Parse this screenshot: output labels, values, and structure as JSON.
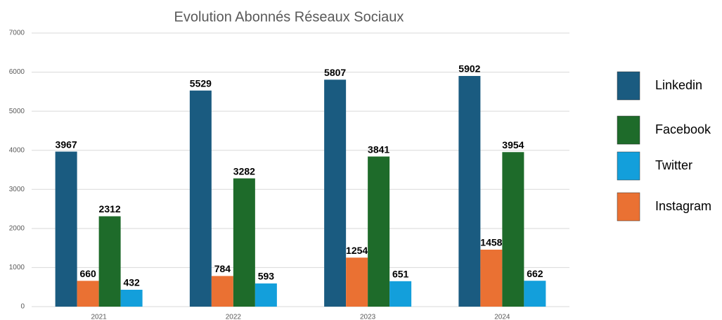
{
  "chart_data": {
    "type": "bar",
    "title": "Evolution Abonnés Réseaux Sociaux",
    "categories": [
      "2021",
      "2022",
      "2023",
      "2024"
    ],
    "series": [
      {
        "name": "Linkedin",
        "color": "#1a5b80",
        "values": [
          3967,
          5529,
          5807,
          5902
        ]
      },
      {
        "name": "Facebook",
        "color": "#1e6b2a",
        "values": [
          2312,
          3282,
          3841,
          3954
        ]
      },
      {
        "name": "Twitter",
        "color": "#139fdb",
        "values": [
          432,
          593,
          651,
          662
        ]
      },
      {
        "name": "Instagram",
        "color": "#ea7133",
        "values": [
          660,
          784,
          1254,
          1458
        ]
      }
    ],
    "ylim": [
      0,
      7000
    ],
    "yticks": [
      0,
      1000,
      2000,
      3000,
      4000,
      5000,
      6000,
      7000
    ],
    "grid": true,
    "legend": "right"
  }
}
